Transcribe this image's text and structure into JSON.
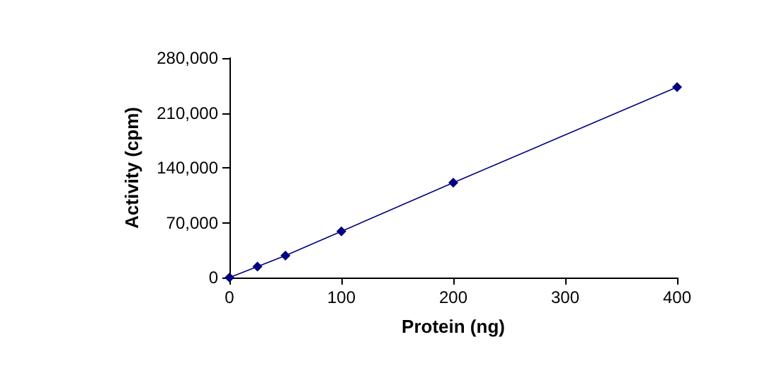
{
  "chart_data": {
    "type": "line",
    "xlabel": "Protein (ng)",
    "ylabel": "Activity (cpm)",
    "x": [
      0,
      25,
      50,
      100,
      200,
      400
    ],
    "series": [
      {
        "color": "#000080",
        "values": [
          0,
          14000,
          28000,
          59000,
          121000,
          243000
        ]
      }
    ],
    "xlim": [
      0,
      400
    ],
    "xticks": [
      0,
      100,
      200,
      300,
      400
    ],
    "ylim": [
      0,
      280000
    ],
    "yticks": [
      0,
      {
        "value": 70000,
        "label": "70,000"
      },
      {
        "value": 140000,
        "label": "140,000"
      },
      {
        "value": 210000,
        "label": "210,000"
      },
      {
        "value": 280000,
        "label": "280,000"
      }
    ],
    "grid": false,
    "marker": "diamond",
    "line_style": "solid"
  }
}
